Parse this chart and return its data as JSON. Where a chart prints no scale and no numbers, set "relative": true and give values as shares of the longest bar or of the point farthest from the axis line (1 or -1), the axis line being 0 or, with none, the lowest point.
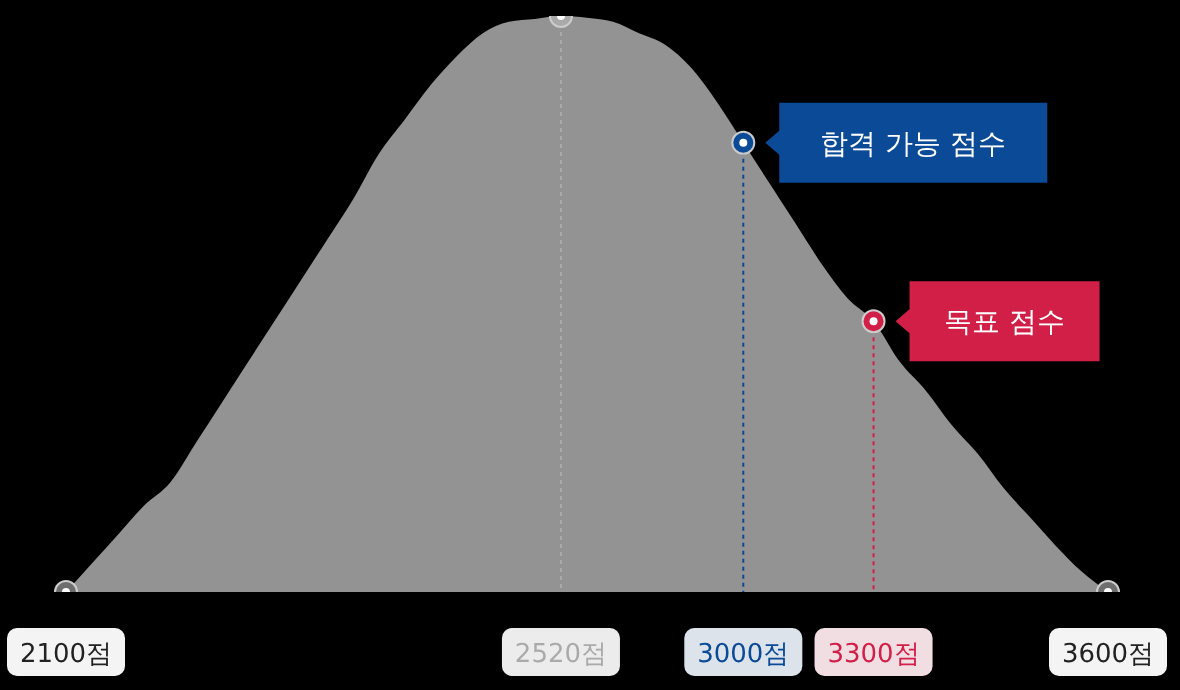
{
  "chart_data": {
    "type": "area",
    "relative": true,
    "categories": [
      "2100점",
      null,
      null,
      null,
      null,
      null,
      null,
      null,
      null,
      null,
      null,
      null,
      null,
      null,
      null,
      null,
      null,
      null,
      null,
      "2520점",
      null,
      null,
      null,
      null,
      null,
      null,
      "3000점",
      null,
      null,
      null,
      null,
      "3300점",
      null,
      null,
      null,
      null,
      null,
      null,
      null,
      null,
      "3600점"
    ],
    "series": [
      {
        "color": "#939393",
        "values": [
          0,
          0.05,
          0.1,
          0.15,
          0.19,
          0.26,
          0.33,
          0.4,
          0.47,
          0.54,
          0.61,
          0.68,
          0.76,
          0.82,
          0.88,
          0.93,
          0.97,
          0.99,
          0.995,
          1,
          0.997,
          0.99,
          0.97,
          0.95,
          0.91,
          0.85,
          0.78,
          0.71,
          0.64,
          0.57,
          0.51,
          0.47,
          0.4,
          0.35,
          0.29,
          0.24,
          0.18,
          0.13,
          0.08,
          0.035,
          0
        ]
      }
    ],
    "ref_lines": [
      {
        "axis": "x",
        "value": "2520점",
        "color": "#aaaaaa",
        "line_style": "dotted"
      },
      {
        "axis": "x",
        "value": "3000점",
        "color": "#0a4a97",
        "line_style": "dotted"
      },
      {
        "axis": "x",
        "value": "3300점",
        "color": "#d21f47",
        "line_style": "dotted"
      }
    ],
    "annotations": [
      {
        "text": "합격 가능 점수",
        "x": "3000점",
        "y": 0.78
      },
      {
        "text": "목표 점수",
        "x": "3300점",
        "y": 0.47
      }
    ]
  }
}
